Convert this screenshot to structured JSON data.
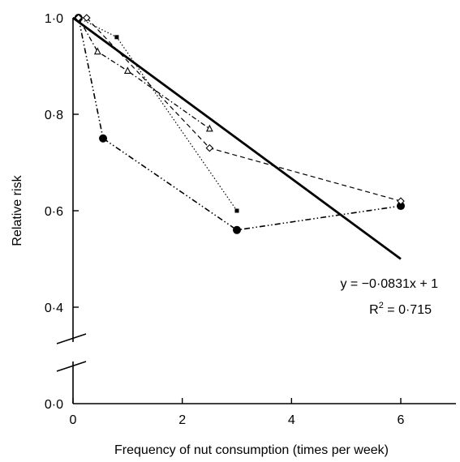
{
  "chart_data": {
    "type": "line",
    "title": "",
    "xlabel": "Frequency of nut consumption (times per week)",
    "ylabel": "Relative risk",
    "xlim": [
      0,
      7
    ],
    "ylim_lower_display": [
      "0·0"
    ],
    "ylim": [
      0.3,
      1.0
    ],
    "axis_break": true,
    "x_ticks": [
      {
        "value": 0,
        "label": "0"
      },
      {
        "value": 2,
        "label": "2"
      },
      {
        "value": 4,
        "label": "4"
      },
      {
        "value": 6,
        "label": "6"
      }
    ],
    "y_ticks": [
      {
        "value": 1.0,
        "label": "1·0"
      },
      {
        "value": 0.8,
        "label": "0·8"
      },
      {
        "value": 0.6,
        "label": "0·6"
      },
      {
        "value": 0.4,
        "label": "0·4"
      }
    ],
    "y_zero_label": "0·0",
    "series": [
      {
        "marker": "circle",
        "line_style": "dash-dot-dot",
        "x": [
          0.1,
          0.55,
          3,
          6
        ],
        "y": [
          1.0,
          0.75,
          0.56,
          0.61
        ]
      },
      {
        "marker": "square",
        "line_style": "dotted",
        "x": [
          0.1,
          0.8,
          3
        ],
        "y": [
          1.0,
          0.96,
          0.6
        ]
      },
      {
        "marker": "triangle",
        "line_style": "dash-dot",
        "x": [
          0.1,
          0.45,
          1,
          2.5
        ],
        "y": [
          1.0,
          0.93,
          0.89,
          0.77
        ]
      },
      {
        "marker": "diamond",
        "line_style": "dashed",
        "x": [
          0.1,
          0.25,
          2.5,
          6
        ],
        "y": [
          1.0,
          1.0,
          0.73,
          0.62
        ]
      }
    ],
    "fit_line": {
      "x": [
        0,
        6
      ],
      "y": [
        1.0,
        0.5
      ]
    },
    "annotations": {
      "equation": "y = −0·0831x + 1",
      "r2_prefix": "R",
      "r2_sup": "2",
      "r2_suffix": " = 0·715"
    },
    "grid": false
  }
}
